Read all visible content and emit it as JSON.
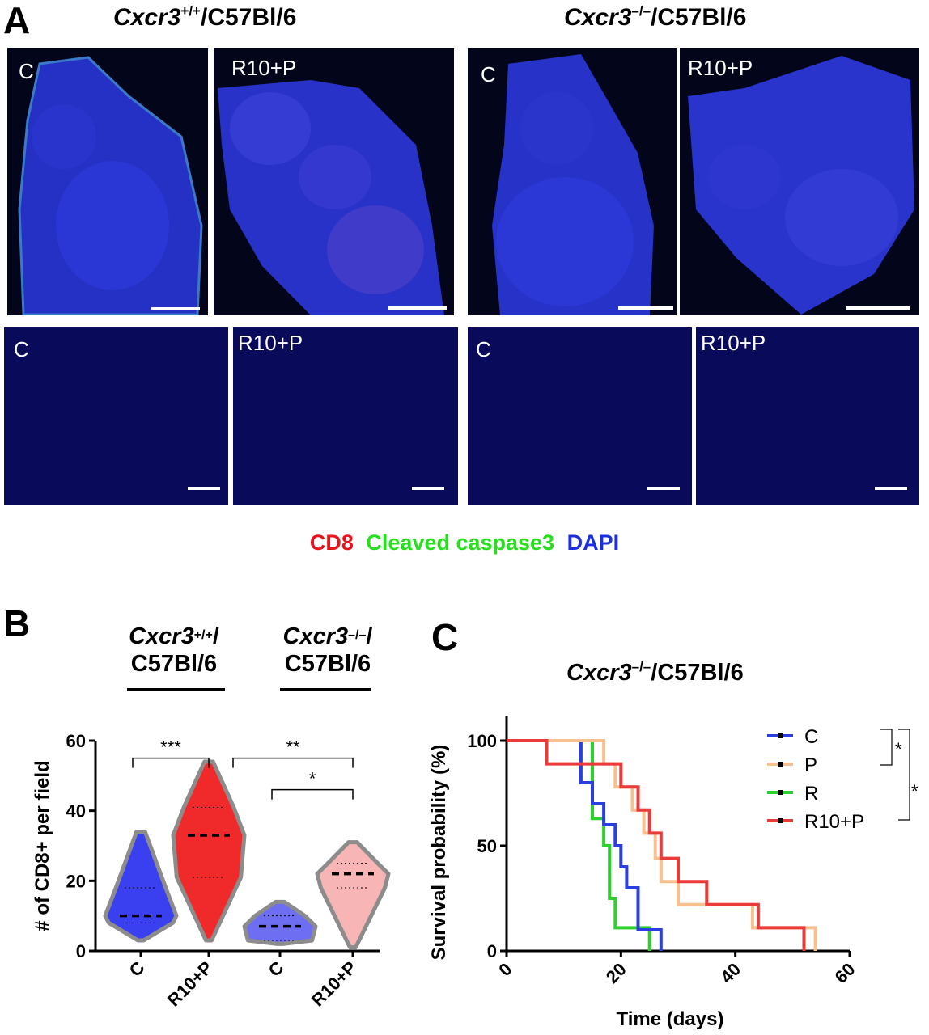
{
  "panelA": {
    "letter": "A",
    "wt_genotype": {
      "gene": "Cxcr3",
      "sup": "+/+",
      "strain": "/C57Bl/6"
    },
    "ko_genotype": {
      "gene": "Cxcr3",
      "sup": "–/–",
      "strain": "/C57Bl/6"
    },
    "tiles": [
      {
        "label": "C"
      },
      {
        "label": "R10+P"
      },
      {
        "label": "C"
      },
      {
        "label": "R10+P"
      },
      {
        "label": "C"
      },
      {
        "label": "R10+P"
      },
      {
        "label": "C"
      },
      {
        "label": "R10+P"
      }
    ],
    "stain_legend": [
      {
        "text": "CD8",
        "color": "#e8141c"
      },
      {
        "text": "Cleaved caspase3",
        "color": "#26e01c"
      },
      {
        "text": "DAPI",
        "color": "#1b2ee0"
      }
    ]
  },
  "panelB": {
    "letter": "B",
    "heading_wt": {
      "gene": "Cxcr3",
      "sup": "+/+",
      "slash": "/",
      "strain": "C57Bl/6"
    },
    "heading_ko": {
      "gene": "Cxcr3",
      "sup": "–/–",
      "slash": "/",
      "strain": "C57Bl/6"
    }
  },
  "panelC": {
    "letter": "C",
    "title": {
      "gene": "Cxcr3",
      "sup": "–/–",
      "strain": "/C57Bl/6"
    }
  },
  "chart_data": [
    {
      "type": "violin",
      "ylabel": "# of CD8+ per field",
      "ylim": [
        0,
        60
      ],
      "yticks": [
        0,
        20,
        40,
        60
      ],
      "categories": [
        "C",
        "R10+P",
        "C",
        "R10+P"
      ],
      "groups": [
        {
          "genotype": "Cxcr3+/+",
          "category": "C",
          "fill": "#3a3ff0",
          "min": 3,
          "max": 34,
          "median": 10,
          "q1": 8,
          "q3": 18
        },
        {
          "genotype": "Cxcr3+/+",
          "category": "R10+P",
          "fill": "#f02a2a",
          "min": 3,
          "max": 54,
          "median": 33,
          "q1": 21,
          "q3": 41
        },
        {
          "genotype": "Cxcr3-/-",
          "category": "C",
          "fill": "#6e6ef2",
          "min": 2,
          "max": 14,
          "median": 7,
          "q1": 3,
          "q3": 10
        },
        {
          "genotype": "Cxcr3-/-",
          "category": "R10+P",
          "fill": "#f7b5b5",
          "min": 1,
          "max": 31,
          "median": 22,
          "q1": 18,
          "q3": 25
        }
      ],
      "significance": [
        {
          "label": "***",
          "from": 0,
          "to": 1,
          "y": 55
        },
        {
          "label": "**",
          "from": 1,
          "to": 3,
          "y": 55
        },
        {
          "label": "*",
          "from": 2,
          "to": 3,
          "y": 46
        }
      ]
    },
    {
      "type": "line",
      "subtype": "kaplan-meier",
      "title": "Cxcr3–/–/C57Bl/6",
      "xlabel": "Time (days)",
      "ylabel": "Survival probability (%)",
      "xlim": [
        0,
        60
      ],
      "ylim": [
        0,
        100
      ],
      "xticks": [
        0,
        20,
        40,
        60
      ],
      "yticks": [
        0,
        50,
        100
      ],
      "series": [
        {
          "name": "C",
          "color": "#2b3fe0",
          "steps": [
            [
              0,
              100
            ],
            [
              13,
              100
            ],
            [
              13,
              80
            ],
            [
              15,
              80
            ],
            [
              15,
              70
            ],
            [
              17,
              70
            ],
            [
              17,
              60
            ],
            [
              19,
              60
            ],
            [
              19,
              50
            ],
            [
              20,
              50
            ],
            [
              20,
              40
            ],
            [
              21,
              40
            ],
            [
              21,
              30
            ],
            [
              23,
              30
            ],
            [
              23,
              10
            ],
            [
              27,
              10
            ],
            [
              27,
              0
            ]
          ]
        },
        {
          "name": "P",
          "color": "#f7c08f",
          "steps": [
            [
              0,
              100
            ],
            [
              17,
              100
            ],
            [
              17,
              89
            ],
            [
              19,
              89
            ],
            [
              19,
              78
            ],
            [
              22,
              78
            ],
            [
              22,
              67
            ],
            [
              24,
              67
            ],
            [
              24,
              56
            ],
            [
              26,
              56
            ],
            [
              26,
              44
            ],
            [
              27,
              44
            ],
            [
              27,
              33
            ],
            [
              30,
              33
            ],
            [
              30,
              22
            ],
            [
              43,
              22
            ],
            [
              43,
              11
            ],
            [
              54,
              11
            ],
            [
              54,
              0
            ]
          ]
        },
        {
          "name": "R",
          "color": "#2ed02e",
          "steps": [
            [
              0,
              100
            ],
            [
              15,
              100
            ],
            [
              15,
              63
            ],
            [
              17,
              63
            ],
            [
              17,
              50
            ],
            [
              18,
              50
            ],
            [
              18,
              25
            ],
            [
              19,
              25
            ],
            [
              19,
              11
            ],
            [
              25,
              11
            ],
            [
              25,
              0
            ]
          ]
        },
        {
          "name": "R10+P",
          "color": "#ea3a3a",
          "steps": [
            [
              0,
              100
            ],
            [
              7,
              100
            ],
            [
              7,
              89
            ],
            [
              20,
              89
            ],
            [
              20,
              78
            ],
            [
              23,
              78
            ],
            [
              23,
              67
            ],
            [
              25,
              67
            ],
            [
              25,
              56
            ],
            [
              27,
              56
            ],
            [
              27,
              44
            ],
            [
              30,
              44
            ],
            [
              30,
              33
            ],
            [
              35,
              33
            ],
            [
              35,
              22
            ],
            [
              44,
              22
            ],
            [
              44,
              11
            ],
            [
              52,
              11
            ],
            [
              52,
              0
            ]
          ]
        }
      ],
      "significance": [
        {
          "label": "*",
          "between": [
            "C",
            "P"
          ]
        },
        {
          "label": "*",
          "between": [
            "C",
            "R10+P"
          ]
        }
      ]
    }
  ]
}
